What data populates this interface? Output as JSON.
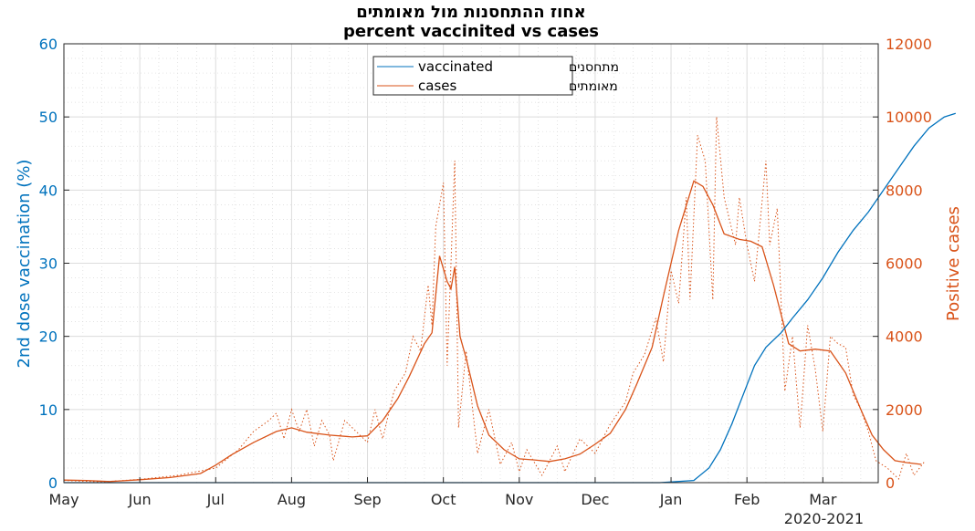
{
  "chart_data": {
    "type": "line",
    "title": "אחוז ההתחסנות מול מאומתים",
    "subtitle": "percent vaccinited vs cases",
    "year_label": "2020-2021",
    "x_ticks": [
      "May",
      "Jun",
      "Jul",
      "Aug",
      "Sep",
      "Oct",
      "Nov",
      "Dec",
      "Jan",
      "Feb",
      "Mar"
    ],
    "y_left": {
      "label": "2nd dose vaccination (%)",
      "ylim": [
        0,
        60
      ],
      "ticks": [
        "0",
        "10",
        "20",
        "30",
        "40",
        "50",
        "60"
      ]
    },
    "y_right": {
      "label": "Positive cases",
      "ylim": [
        0,
        12000
      ],
      "ticks": [
        "0",
        "2000",
        "4000",
        "6000",
        "8000",
        "10000",
        "12000"
      ]
    },
    "grid": true,
    "legend": {
      "placement": "top-center",
      "entries": [
        {
          "name": "vaccinated",
          "hebrew": "מתחסנים"
        },
        {
          "name": "cases",
          "hebrew": "מאומתים"
        }
      ]
    },
    "colors": {
      "vaccinated": "#0072bd",
      "cases": "#d95319",
      "axis": "#262626"
    },
    "series": [
      {
        "name": "vaccinated",
        "axis": "left",
        "points": [
          [
            0,
            0
          ],
          [
            7.85,
            0
          ],
          [
            8.3,
            0.3
          ],
          [
            8.5,
            2
          ],
          [
            8.65,
            4.5
          ],
          [
            8.8,
            8
          ],
          [
            8.95,
            12
          ],
          [
            9.1,
            16
          ],
          [
            9.25,
            18.5
          ],
          [
            9.45,
            20.5
          ],
          [
            9.6,
            22.5
          ],
          [
            9.8,
            25
          ],
          [
            10,
            28
          ],
          [
            10.2,
            31.5
          ],
          [
            10.4,
            34.5
          ],
          [
            10.6,
            37
          ],
          [
            10.8,
            40
          ],
          [
            11,
            43
          ],
          [
            11.2,
            46
          ],
          [
            11.4,
            48.5
          ],
          [
            11.6,
            50
          ],
          [
            11.75,
            50.5
          ]
        ]
      },
      {
        "name": "cases",
        "axis": "right",
        "style": "solid",
        "points": [
          [
            0,
            70
          ],
          [
            0.3,
            60
          ],
          [
            0.6,
            30
          ],
          [
            1,
            80
          ],
          [
            1.4,
            140
          ],
          [
            1.8,
            250
          ],
          [
            2.0,
            480
          ],
          [
            2.2,
            750
          ],
          [
            2.5,
            1100
          ],
          [
            2.8,
            1400
          ],
          [
            3.0,
            1500
          ],
          [
            3.2,
            1380
          ],
          [
            3.5,
            1300
          ],
          [
            3.8,
            1250
          ],
          [
            4.0,
            1280
          ],
          [
            4.2,
            1700
          ],
          [
            4.4,
            2300
          ],
          [
            4.55,
            2900
          ],
          [
            4.75,
            3800
          ],
          [
            4.85,
            4100
          ],
          [
            4.95,
            6200
          ],
          [
            5.05,
            5500
          ],
          [
            5.1,
            5300
          ],
          [
            5.15,
            5900
          ],
          [
            5.22,
            4000
          ],
          [
            5.3,
            3400
          ],
          [
            5.45,
            2100
          ],
          [
            5.6,
            1300
          ],
          [
            5.8,
            900
          ],
          [
            6,
            650
          ],
          [
            6.2,
            620
          ],
          [
            6.4,
            580
          ],
          [
            6.6,
            650
          ],
          [
            6.8,
            780
          ],
          [
            7,
            1050
          ],
          [
            7.2,
            1350
          ],
          [
            7.4,
            2000
          ],
          [
            7.55,
            2700
          ],
          [
            7.75,
            3700
          ],
          [
            7.9,
            5100
          ],
          [
            8.1,
            6900
          ],
          [
            8.3,
            8250
          ],
          [
            8.42,
            8100
          ],
          [
            8.55,
            7600
          ],
          [
            8.7,
            6800
          ],
          [
            8.9,
            6650
          ],
          [
            9.05,
            6600
          ],
          [
            9.2,
            6450
          ],
          [
            9.35,
            5400
          ],
          [
            9.55,
            3800
          ],
          [
            9.7,
            3600
          ],
          [
            9.9,
            3650
          ],
          [
            10.1,
            3600
          ],
          [
            10.3,
            3000
          ],
          [
            10.5,
            2000
          ],
          [
            10.65,
            1300
          ],
          [
            10.8,
            900
          ],
          [
            10.95,
            600
          ],
          [
            11.1,
            550
          ],
          [
            11.3,
            500
          ]
        ]
      },
      {
        "name": "cases",
        "axis": "right",
        "style": "dotted",
        "points": [
          [
            0,
            60
          ],
          [
            0.5,
            20
          ],
          [
            1,
            90
          ],
          [
            1.5,
            200
          ],
          [
            2,
            400
          ],
          [
            2.3,
            900
          ],
          [
            2.5,
            1400
          ],
          [
            2.7,
            1700
          ],
          [
            2.8,
            1900
          ],
          [
            2.9,
            1200
          ],
          [
            3.0,
            2000
          ],
          [
            3.1,
            1400
          ],
          [
            3.2,
            2000
          ],
          [
            3.3,
            1000
          ],
          [
            3.4,
            1700
          ],
          [
            3.5,
            1300
          ],
          [
            3.55,
            600
          ],
          [
            3.7,
            1700
          ],
          [
            3.8,
            1500
          ],
          [
            4.0,
            1100
          ],
          [
            4.1,
            2000
          ],
          [
            4.2,
            1200
          ],
          [
            4.35,
            2500
          ],
          [
            4.5,
            3000
          ],
          [
            4.6,
            4000
          ],
          [
            4.7,
            3600
          ],
          [
            4.8,
            5400
          ],
          [
            4.85,
            4300
          ],
          [
            4.9,
            7000
          ],
          [
            5.0,
            8200
          ],
          [
            5.05,
            3200
          ],
          [
            5.1,
            6000
          ],
          [
            5.15,
            8800
          ],
          [
            5.2,
            1500
          ],
          [
            5.3,
            3600
          ],
          [
            5.45,
            800
          ],
          [
            5.6,
            2000
          ],
          [
            5.75,
            500
          ],
          [
            5.9,
            1100
          ],
          [
            6.0,
            300
          ],
          [
            6.1,
            900
          ],
          [
            6.3,
            200
          ],
          [
            6.5,
            1000
          ],
          [
            6.6,
            300
          ],
          [
            6.8,
            1200
          ],
          [
            7.0,
            800
          ],
          [
            7.2,
            1600
          ],
          [
            7.4,
            2200
          ],
          [
            7.5,
            3000
          ],
          [
            7.65,
            3500
          ],
          [
            7.8,
            4500
          ],
          [
            7.9,
            3300
          ],
          [
            8.0,
            5800
          ],
          [
            8.1,
            4900
          ],
          [
            8.2,
            7800
          ],
          [
            8.25,
            5000
          ],
          [
            8.35,
            9500
          ],
          [
            8.45,
            8800
          ],
          [
            8.55,
            5000
          ],
          [
            8.6,
            10000
          ],
          [
            8.7,
            7800
          ],
          [
            8.85,
            6500
          ],
          [
            8.9,
            7800
          ],
          [
            9.0,
            6500
          ],
          [
            9.1,
            5500
          ],
          [
            9.25,
            8800
          ],
          [
            9.3,
            6500
          ],
          [
            9.4,
            7500
          ],
          [
            9.5,
            2500
          ],
          [
            9.6,
            4000
          ],
          [
            9.7,
            1500
          ],
          [
            9.8,
            4300
          ],
          [
            9.9,
            3100
          ],
          [
            10.0,
            1400
          ],
          [
            10.1,
            4000
          ],
          [
            10.2,
            3800
          ],
          [
            10.3,
            3700
          ],
          [
            10.4,
            2400
          ],
          [
            10.5,
            2000
          ],
          [
            10.6,
            1400
          ],
          [
            10.7,
            600
          ],
          [
            10.85,
            400
          ],
          [
            11.0,
            100
          ],
          [
            11.1,
            800
          ],
          [
            11.2,
            200
          ],
          [
            11.35,
            600
          ]
        ]
      }
    ]
  }
}
